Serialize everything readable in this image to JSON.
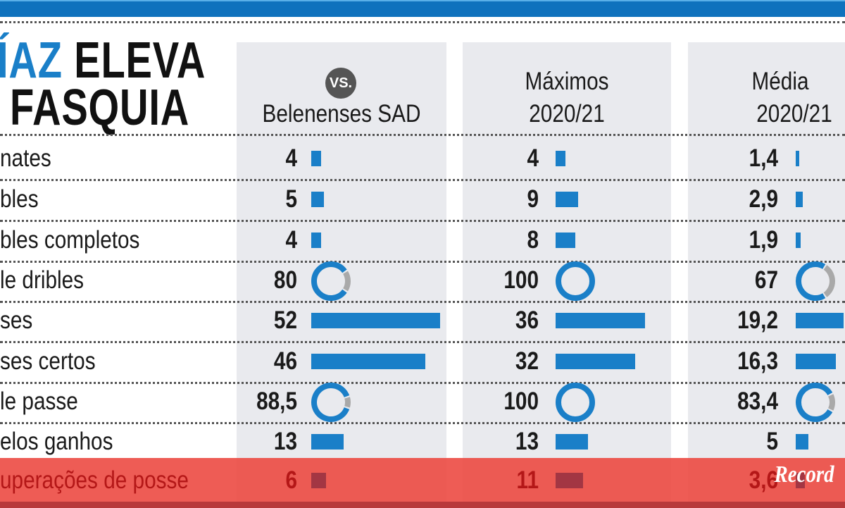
{
  "title": {
    "highlight": "ÍAZ",
    "line1": "ELEVA",
    "line2": "FASQUIA"
  },
  "columns": [
    {
      "badge": "VS.",
      "line1": "",
      "line2": "Belenenses SAD"
    },
    {
      "line1": "Máximos",
      "line2": "2020/21"
    },
    {
      "line1": "Média",
      "line2": "2020/21"
    }
  ],
  "colors": {
    "accent": "#1a7fc8",
    "ring_rest": "#a9a9a9",
    "highlight_row": "#ec463e",
    "highlight_bar": "#a33643"
  },
  "logo": "Record",
  "chart_data": {
    "type": "table",
    "categories": [
      "nates",
      "bles",
      "bles completos",
      "le dribles",
      "ses",
      "ses certos",
      "le passe",
      "elos ganhos",
      "uperações de posse"
    ],
    "series": [
      {
        "name": "Belenenses SAD",
        "values": [
          "4",
          "5",
          "4",
          "80",
          "52",
          "46",
          "88,5",
          "13",
          "6"
        ]
      },
      {
        "name": "Máximos 2020/21",
        "values": [
          "4",
          "9",
          "8",
          "100",
          "36",
          "32",
          "100",
          "13",
          "11"
        ]
      },
      {
        "name": "Média 2020/21",
        "values": [
          "1,4",
          "2,9",
          "1,9",
          "67",
          "19,2",
          "16,3",
          "83,4",
          "5",
          "3,6"
        ]
      }
    ],
    "mark_types": [
      "bar",
      "bar",
      "bar",
      "ring",
      "bar",
      "bar",
      "ring",
      "bar",
      "bar"
    ],
    "highlighted_row": 8
  }
}
